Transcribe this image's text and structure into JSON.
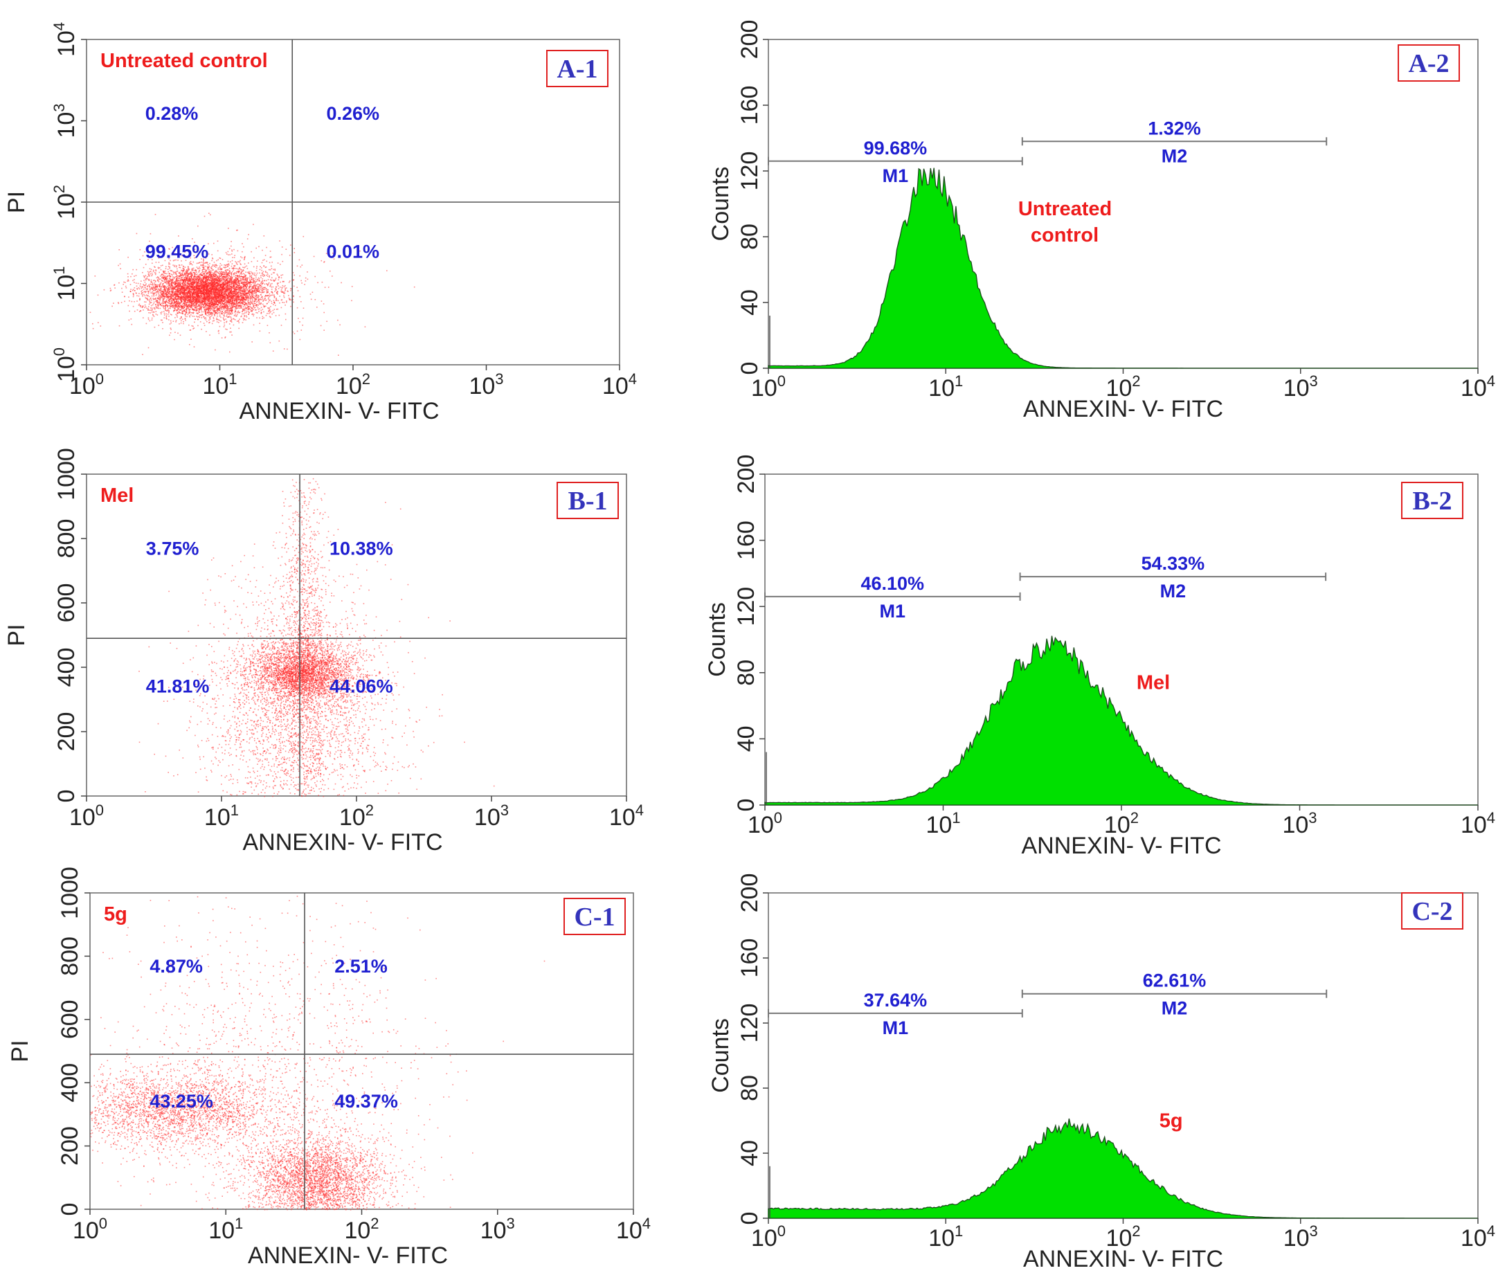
{
  "figure": {
    "x_axis_label": "ANNEXIN- V- FITC"
  },
  "colors": {
    "dots": "#ff2a2a",
    "hist_fill": "#00e000",
    "hist_edge": "#1a4a1a",
    "label_blue": "#1f1fd0",
    "label_red": "#ee1c1c"
  },
  "chart_data": [
    {
      "type": "scatter",
      "panel": "A-1",
      "sample": "Untreated control",
      "xlabel": "ANNEXIN- V- FITC",
      "ylabel": "PI",
      "x_scale": "log",
      "xlim": [
        1,
        10000
      ],
      "y_scale": "log",
      "ylim": [
        1,
        10000
      ],
      "x_ticks": [
        {
          "base": "10",
          "exp": "0"
        },
        {
          "base": "10",
          "exp": "1"
        },
        {
          "base": "10",
          "exp": "2"
        },
        {
          "base": "10",
          "exp": "3"
        },
        {
          "base": "10",
          "exp": "4"
        }
      ],
      "y_ticks": [
        {
          "base": "10",
          "exp": "0"
        },
        {
          "base": "10",
          "exp": "1"
        },
        {
          "base": "10",
          "exp": "2"
        },
        {
          "base": "10",
          "exp": "3"
        },
        {
          "base": "10",
          "exp": "4"
        }
      ],
      "gate": {
        "x": 35,
        "y": 100
      },
      "quadrants": {
        "upper_left": "0.28%",
        "upper_right": "0.26%",
        "lower_left": "99.45%",
        "lower_right": "0.01%"
      },
      "populations": [
        {
          "x_center": 8,
          "x_spread_decades": 0.22,
          "y_center": 8,
          "y_spread_decades": 0.14,
          "share": 0.9
        },
        {
          "x_center": 10,
          "x_spread_decades": 0.4,
          "y_center": 9,
          "y_spread_decades": 0.3,
          "share": 0.1
        }
      ]
    },
    {
      "type": "histogram",
      "panel": "A-2",
      "sample_lines": [
        "Untreated",
        "control"
      ],
      "xlabel": "ANNEXIN- V- FITC",
      "ylabel": "Counts",
      "x_scale": "log",
      "xlim": [
        1,
        10000
      ],
      "ylim": [
        0,
        200
      ],
      "y_ticks": [
        0,
        40,
        80,
        120,
        160,
        200
      ],
      "x_ticks": [
        {
          "base": "10",
          "exp": "0"
        },
        {
          "base": "10",
          "exp": "1"
        },
        {
          "base": "10",
          "exp": "2"
        },
        {
          "base": "10",
          "exp": "3"
        },
        {
          "base": "10",
          "exp": "4"
        }
      ],
      "peak": {
        "x_center": 8,
        "log_width": 0.17,
        "height": 118
      },
      "markers": [
        {
          "name": "M1",
          "percent": "99.68%",
          "x_start": 1,
          "x_end": 27,
          "y": 126
        },
        {
          "name": "M2",
          "percent": "1.32%",
          "x_start": 27,
          "x_end": 1400,
          "y": 138
        }
      ]
    },
    {
      "type": "scatter",
      "panel": "B-1",
      "sample": "Mel",
      "xlabel": "ANNEXIN- V- FITC",
      "ylabel": "PI",
      "x_scale": "log",
      "xlim": [
        1,
        10000
      ],
      "y_scale": "linear",
      "ylim": [
        0,
        1000
      ],
      "x_ticks": [
        {
          "base": "10",
          "exp": "0"
        },
        {
          "base": "10",
          "exp": "1"
        },
        {
          "base": "10",
          "exp": "2"
        },
        {
          "base": "10",
          "exp": "3"
        },
        {
          "base": "10",
          "exp": "4"
        }
      ],
      "y_ticks": [
        0,
        200,
        400,
        600,
        800,
        1000
      ],
      "gate": {
        "x": 38,
        "y": 490
      },
      "quadrants": {
        "upper_left": "3.75%",
        "upper_right": "10.38%",
        "lower_left": "41.81%",
        "lower_right": "44.06%"
      },
      "populations": [
        {
          "x_center": 40,
          "x_spread_decades": 0.2,
          "y_center": 385,
          "y_spread": 45,
          "share": 0.42
        },
        {
          "x_center": 35,
          "x_spread_decades": 0.35,
          "y_center": 250,
          "y_spread": 200,
          "share": 0.4
        },
        {
          "x_center": 40,
          "x_spread_decades": 0.08,
          "y_center": 500,
          "y_spread": 280,
          "share": 0.18
        }
      ]
    },
    {
      "type": "histogram",
      "panel": "B-2",
      "sample_lines": [
        "Mel"
      ],
      "xlabel": "ANNEXIN- V- FITC",
      "ylabel": "Counts",
      "x_scale": "log",
      "xlim": [
        1,
        10000
      ],
      "ylim": [
        0,
        200
      ],
      "y_ticks": [
        0,
        40,
        80,
        120,
        160,
        200
      ],
      "x_ticks": [
        {
          "base": "10",
          "exp": "0"
        },
        {
          "base": "10",
          "exp": "1"
        },
        {
          "base": "10",
          "exp": "2"
        },
        {
          "base": "10",
          "exp": "3"
        },
        {
          "base": "10",
          "exp": "4"
        }
      ],
      "peak": {
        "x_center": 38,
        "log_width": 0.3,
        "height": 95
      },
      "markers": [
        {
          "name": "M1",
          "percent": "46.10%",
          "x_start": 1,
          "x_end": 27,
          "y": 126
        },
        {
          "name": "M2",
          "percent": "54.33%",
          "x_start": 27,
          "x_end": 1400,
          "y": 138
        }
      ]
    },
    {
      "type": "scatter",
      "panel": "C-1",
      "sample": "5g",
      "xlabel": "ANNEXIN- V- FITC",
      "ylabel": "PI",
      "x_scale": "log",
      "xlim": [
        1,
        10000
      ],
      "y_scale": "linear",
      "ylim": [
        0,
        1000
      ],
      "x_ticks": [
        {
          "base": "10",
          "exp": "0"
        },
        {
          "base": "10",
          "exp": "1"
        },
        {
          "base": "10",
          "exp": "2"
        },
        {
          "base": "10",
          "exp": "3"
        },
        {
          "base": "10",
          "exp": "4"
        }
      ],
      "y_ticks": [
        0,
        200,
        400,
        600,
        800,
        1000
      ],
      "gate": {
        "x": 38,
        "y": 490
      },
      "quadrants": {
        "upper_left": "4.87%",
        "upper_right": "2.51%",
        "lower_left": "43.25%",
        "lower_right": "49.37%"
      },
      "populations": [
        {
          "x_center": 45,
          "x_spread_decades": 0.25,
          "y_center": 90,
          "y_spread": 70,
          "share": 0.45
        },
        {
          "x_center": 4,
          "x_spread_decades": 0.4,
          "y_center": 320,
          "y_spread": 60,
          "share": 0.35
        },
        {
          "x_center": 20,
          "x_spread_decades": 0.6,
          "y_center": 400,
          "y_spread": 250,
          "share": 0.2
        }
      ]
    },
    {
      "type": "histogram",
      "panel": "C-2",
      "sample_lines": [
        "5g"
      ],
      "xlabel": "ANNEXIN- V- FITC",
      "ylabel": "Counts",
      "x_scale": "log",
      "xlim": [
        1,
        10000
      ],
      "ylim": [
        0,
        200
      ],
      "y_ticks": [
        0,
        40,
        80,
        120,
        160,
        200
      ],
      "x_ticks": [
        {
          "base": "10",
          "exp": "0"
        },
        {
          "base": "10",
          "exp": "1"
        },
        {
          "base": "10",
          "exp": "2"
        },
        {
          "base": "10",
          "exp": "3"
        },
        {
          "base": "10",
          "exp": "4"
        }
      ],
      "peak": {
        "x_center": 50,
        "log_width": 0.28,
        "height": 52
      },
      "baseline": 6,
      "markers": [
        {
          "name": "M1",
          "percent": "37.64%",
          "x_start": 1,
          "x_end": 27,
          "y": 126
        },
        {
          "name": "M2",
          "percent": "62.61%",
          "x_start": 27,
          "x_end": 1400,
          "y": 138
        }
      ]
    }
  ]
}
